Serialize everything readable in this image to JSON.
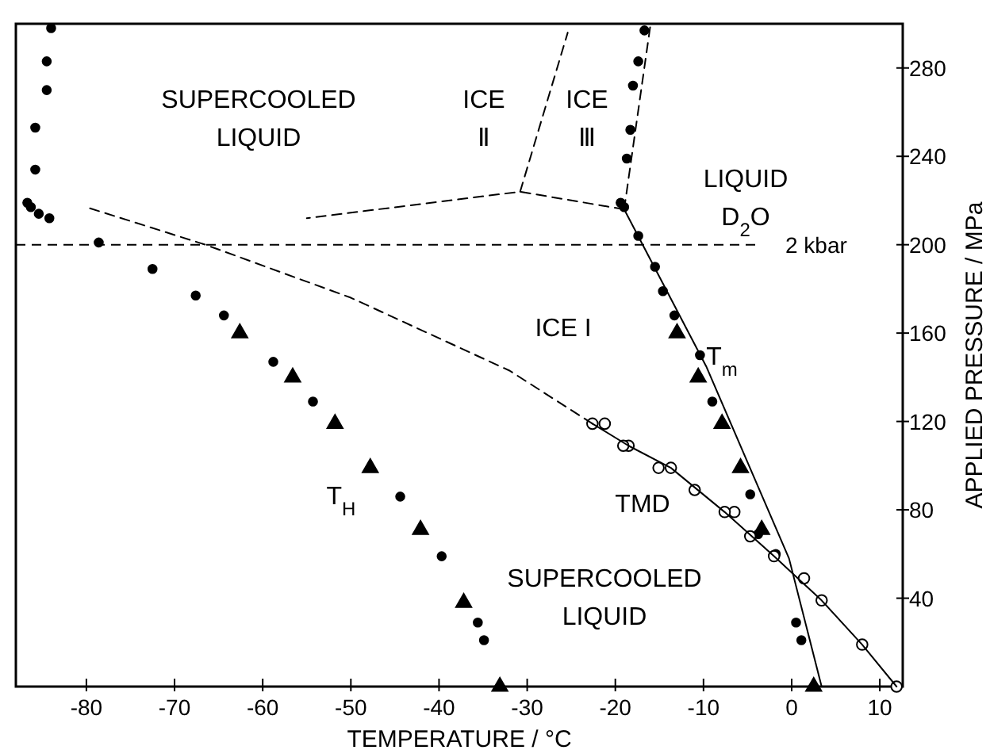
{
  "chart_data": {
    "type": "scatter",
    "xlabel": "TEMPERATURE / °C",
    "ylabel": "APPLIED PRESSURE / MPa",
    "xlim": [
      -88,
      12.6
    ],
    "ylim": [
      0,
      300
    ],
    "xticks": [
      -80,
      -70,
      -60,
      -50,
      -40,
      -30,
      -20,
      -10,
      0,
      10
    ],
    "yticks": [
      40,
      80,
      120,
      160,
      200,
      240,
      280
    ],
    "grid": false,
    "series": [
      {
        "marker": "circle",
        "color": "#000000",
        "x": [
          -84.0,
          -84.5,
          -84.5,
          -85.8,
          -85.8,
          -86.7,
          -86.3,
          -85.4,
          -84.2,
          -78.6,
          -72.5,
          -67.6,
          -64.4,
          -58.8,
          -54.3,
          -44.4,
          -39.7,
          -35.6,
          -34.9
        ],
        "values": [
          298,
          283,
          270,
          253,
          234,
          219,
          217,
          214,
          212,
          201,
          189,
          177,
          168,
          147,
          129,
          86,
          59,
          29,
          21
        ]
      },
      {
        "marker": "triangle",
        "color": "#000000",
        "x": [
          -62.6,
          -56.6,
          -51.8,
          -47.8,
          -42.1,
          -37.2,
          -33.1
        ],
        "values": [
          160,
          140,
          119,
          99,
          71,
          38,
          0
        ]
      },
      {
        "marker": "circle",
        "color": "#000000",
        "x": [
          -16.7,
          -17.4,
          -18.0,
          -18.3,
          -18.7,
          -19.4,
          -19.0,
          -17.4,
          -15.5,
          -14.6,
          -13.3,
          -10.4,
          -9.0,
          -4.7,
          -3.8,
          -1.8,
          0.5,
          1.1
        ],
        "values": [
          297,
          283,
          272,
          252,
          239,
          219,
          217,
          204,
          190,
          179,
          168,
          150,
          129,
          87,
          69,
          60,
          29,
          21
        ]
      },
      {
        "marker": "triangle",
        "color": "#000000",
        "x": [
          -13.0,
          -10.6,
          -7.9,
          -5.8,
          -3.4,
          2.5
        ],
        "values": [
          160,
          140,
          119,
          99,
          71,
          0
        ]
      },
      {
        "marker": "circle",
        "color": "#ffffff",
        "x": [
          11.9,
          8.0,
          3.4,
          1.4,
          -2.0,
          -4.7,
          -6.5,
          -7.6,
          -11.0,
          -13.7,
          -15.1,
          -18.5,
          -19.1,
          -21.2,
          -22.6
        ],
        "values": [
          0,
          19,
          39,
          49,
          59,
          68,
          79,
          79,
          89,
          99,
          99,
          109,
          109,
          119,
          119
        ]
      },
      {
        "type": "line",
        "line_style": "solid",
        "color": "#000000",
        "x": [
          11.9,
          8.0,
          3.4,
          -2.0,
          -7.6,
          -13.7,
          -18.5,
          -22.6
        ],
        "values": [
          0,
          19,
          39,
          59,
          79,
          99,
          109,
          119
        ]
      },
      {
        "type": "line",
        "line_style": "dashed",
        "color": "#000000",
        "x": [
          -22.6,
          -32,
          -50,
          -66.5,
          -80
        ],
        "values": [
          119,
          143,
          176,
          200,
          217
        ]
      },
      {
        "type": "line",
        "line_style": "solid",
        "color": "#000000",
        "x": [
          3.4,
          -0.3,
          -9.7,
          -19
        ],
        "values": [
          0,
          58,
          145,
          216
        ]
      },
      {
        "type": "line",
        "line_style": "dashed",
        "color": "#000000",
        "x": [
          -19,
          -16
        ],
        "values": [
          216,
          300
        ]
      },
      {
        "type": "line",
        "line_style": "dashed",
        "color": "#000000",
        "x": [
          -19,
          -30.8,
          -55
        ],
        "values": [
          216,
          224,
          212
        ]
      },
      {
        "type": "line",
        "line_style": "dashed",
        "color": "#000000",
        "x": [
          -30.8,
          -25.4
        ],
        "values": [
          224,
          296
        ]
      }
    ],
    "ref_lines": [
      {
        "axis": "y",
        "value": 200,
        "label": "2 kbar",
        "line_style": "dashed"
      }
    ],
    "annotations": [
      "SUPERCOOLED\nLIQUID",
      "ICE\nⅡ",
      "ICE\nⅢ",
      "LIQUID\nD$_{2}$O",
      "ICE  I",
      "T$_{m}$",
      "T$_{H}$",
      "TMD",
      "SUPERCOOLED\nLIQUID"
    ]
  }
}
